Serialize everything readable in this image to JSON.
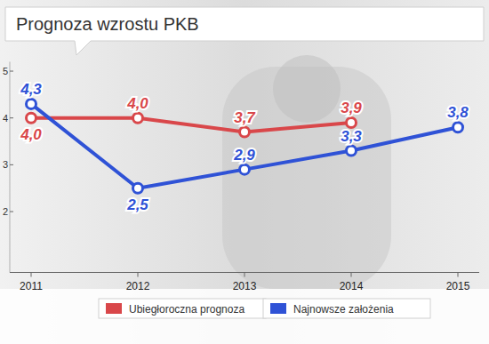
{
  "chart_data": {
    "type": "line",
    "title": "Prognoza wzrostu PKB",
    "x": [
      2011,
      2012,
      2013,
      2014,
      2015
    ],
    "xlim": [
      2010.8,
      2015.2
    ],
    "xticks": [
      2011,
      2012,
      2013,
      2014,
      2015
    ],
    "ylim": [
      0.7,
      5.2
    ],
    "yticks": [
      2,
      3,
      4,
      5
    ],
    "grid": false,
    "legend": "bottom",
    "data_labels": true,
    "series": [
      {
        "name": "Ubiegłoroczna prognoza",
        "color": "#d9474a",
        "marker": "circle",
        "line_style": "solid",
        "values": [
          4.0,
          4.0,
          3.7,
          3.9,
          null
        ],
        "value_labels": [
          "4,0",
          "4,0",
          "3,7",
          "3,9",
          null
        ]
      },
      {
        "name": "Najnowsze założenia",
        "color": "#2f52d6",
        "marker": "circle",
        "line_style": "solid",
        "values": [
          4.3,
          2.5,
          2.9,
          3.3,
          3.8
        ],
        "value_labels": [
          "4,3",
          "2,5",
          "2,9",
          "3,3",
          "3,8"
        ]
      }
    ]
  }
}
